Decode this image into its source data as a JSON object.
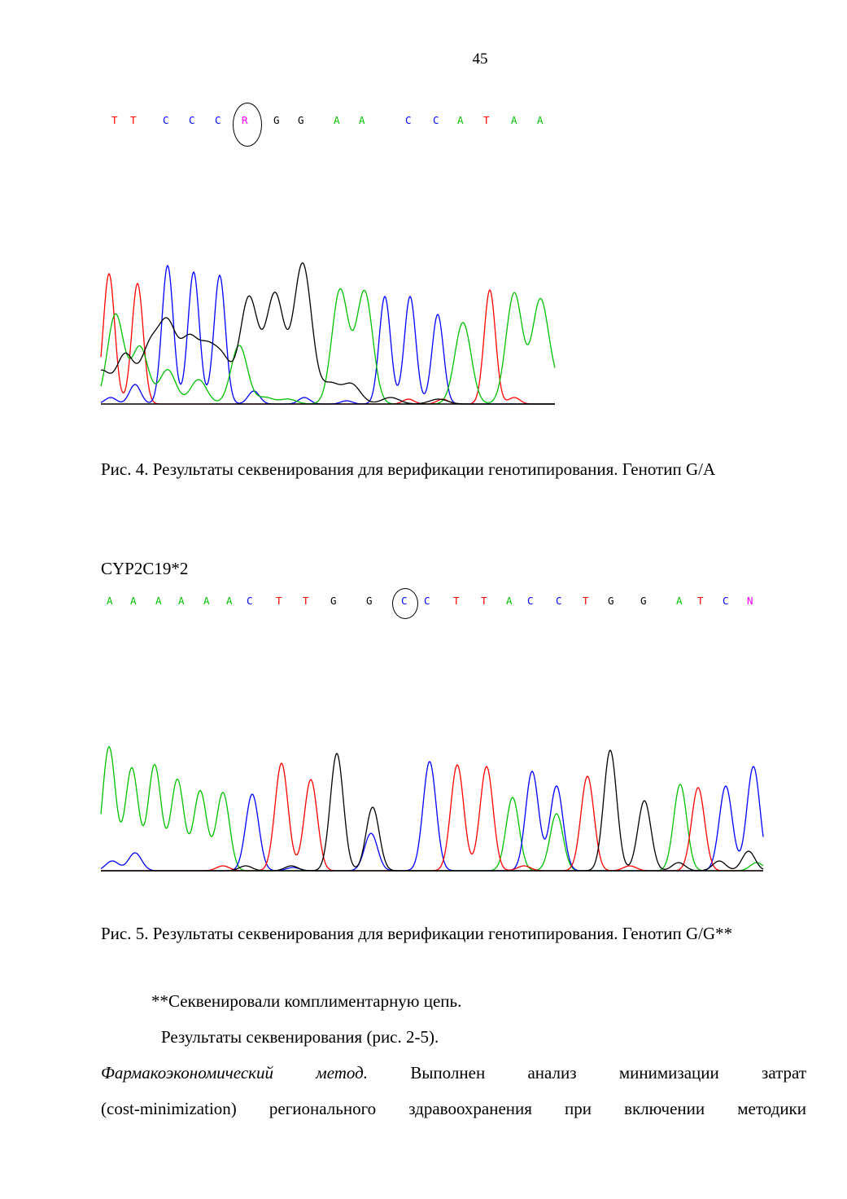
{
  "page_number": "45",
  "figure4": {
    "sequence": [
      {
        "b": "T",
        "c": "red"
      },
      {
        "b": "T",
        "c": "red"
      },
      {
        "b": "C",
        "c": "blue"
      },
      {
        "b": "C",
        "c": "blue"
      },
      {
        "b": "C",
        "c": "blue"
      },
      {
        "b": "R",
        "c": "magenta"
      },
      {
        "b": "G",
        "c": "black"
      },
      {
        "b": "G",
        "c": "black"
      },
      {
        "b": "A",
        "c": "green"
      },
      {
        "b": "A",
        "c": "green"
      },
      {
        "b": "C",
        "c": "blue"
      },
      {
        "b": "C",
        "c": "blue"
      },
      {
        "b": "A",
        "c": "green"
      },
      {
        "b": "T",
        "c": "red"
      },
      {
        "b": "A",
        "c": "green"
      },
      {
        "b": "A",
        "c": "green"
      }
    ],
    "highlighted_index": 5,
    "caption": "Рис. 4. Результаты секвенирования для верификации генотипирования. Генотип G/A"
  },
  "figure5": {
    "gene_label": "CYP2C19*2",
    "sequence": [
      {
        "b": "A",
        "c": "green"
      },
      {
        "b": "A",
        "c": "green"
      },
      {
        "b": "A",
        "c": "green"
      },
      {
        "b": "A",
        "c": "green"
      },
      {
        "b": "A",
        "c": "green"
      },
      {
        "b": "A",
        "c": "green"
      },
      {
        "b": "C",
        "c": "blue"
      },
      {
        "b": "T",
        "c": "red"
      },
      {
        "b": "T",
        "c": "red"
      },
      {
        "b": "G",
        "c": "black"
      },
      {
        "b": "G",
        "c": "black"
      },
      {
        "b": "C",
        "c": "blue"
      },
      {
        "b": "C",
        "c": "blue"
      },
      {
        "b": "T",
        "c": "red"
      },
      {
        "b": "T",
        "c": "red"
      },
      {
        "b": "A",
        "c": "green"
      },
      {
        "b": "C",
        "c": "blue"
      },
      {
        "b": "C",
        "c": "blue"
      },
      {
        "b": "T",
        "c": "red"
      },
      {
        "b": "G",
        "c": "black"
      },
      {
        "b": "G",
        "c": "black"
      },
      {
        "b": "A",
        "c": "green"
      },
      {
        "b": "T",
        "c": "red"
      },
      {
        "b": "C",
        "c": "blue"
      },
      {
        "b": "N",
        "c": "magenta"
      }
    ],
    "highlighted_index": 11,
    "caption": "Рис. 5. Результаты секвенирования для верификации генотипирования. Генотип G/G**"
  },
  "footnote": "**Секвенировали комплиментарную цепь.",
  "results_line": "Результаты секвенирования (рис. 2-5).",
  "method_title": "Фармакоэкономический метод.",
  "method_text_line1": "Выполнен анализ минимизации затрат",
  "method_text_line2": "(cost-minimization) регионального здравоохранения при включении методики",
  "colors": {
    "red": "#ff0000",
    "blue": "#0000ff",
    "green": "#00c000",
    "black": "#000000",
    "magenta": "#ff00ff",
    "baseline": "#000000"
  }
}
